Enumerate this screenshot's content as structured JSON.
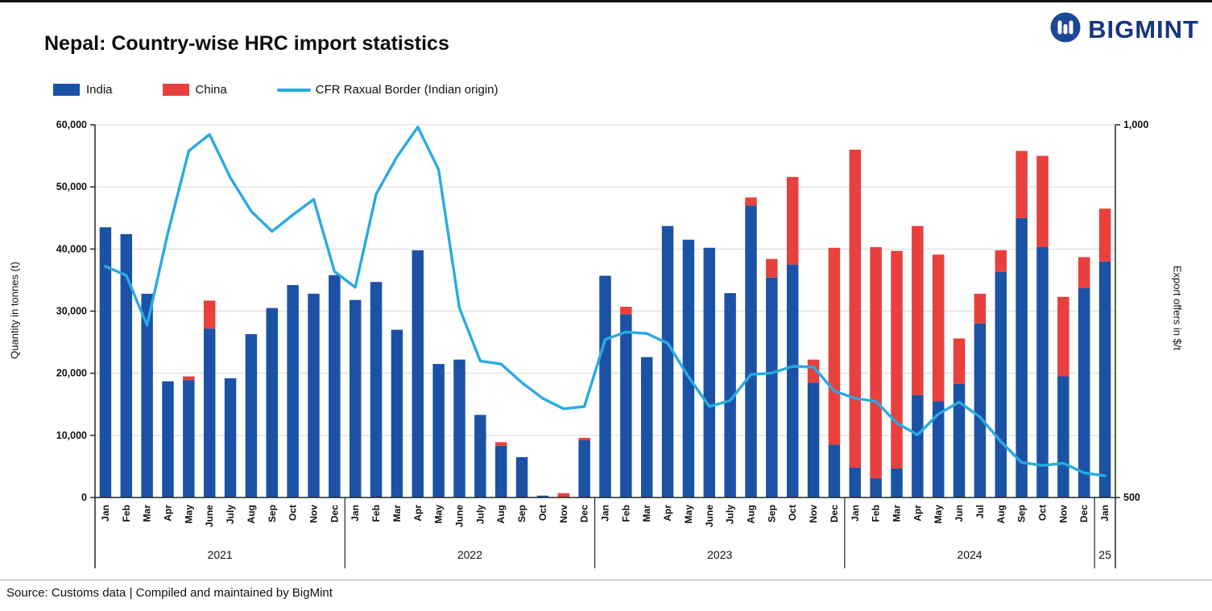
{
  "page": {
    "title": "Nepal: Country-wise HRC import statistics",
    "source": "Source: Customs data | Compiled and maintained by BigMint",
    "logo_text": "BIGMINT"
  },
  "legend": [
    {
      "label": "India",
      "color": "#1B52A5",
      "type": "box"
    },
    {
      "label": "China",
      "color": "#E8403C",
      "type": "box"
    },
    {
      "label": "CFR Raxual Border (Indian origin)",
      "color": "#2AAAE1",
      "type": "line"
    }
  ],
  "chart_data": {
    "type": "bar",
    "title": "Nepal: Country-wise HRC import statistics",
    "ylabel_left": "Quantity in tonnes (t)",
    "ylabel_right": "Export offers in $/t",
    "ylim_left": [
      0,
      60000
    ],
    "ylim_right": [
      500,
      1000
    ],
    "left_ticks": [
      0,
      10000,
      20000,
      30000,
      40000,
      50000,
      60000
    ],
    "right_ticks": [
      500,
      1000
    ],
    "grid": true,
    "legend_position": "top-left",
    "colors": {
      "grid": "#D9D9D9",
      "axis": "#262626"
    },
    "year_groups": [
      {
        "label": "2021",
        "count": 12
      },
      {
        "label": "2022",
        "count": 12
      },
      {
        "label": "2023",
        "count": 12
      },
      {
        "label": "2024",
        "count": 12
      },
      {
        "label": "25",
        "count": 1
      }
    ],
    "months": [
      "Jan",
      "Feb",
      "Mar",
      "Apr",
      "May",
      "June",
      "July",
      "Aug",
      "Sep",
      "Oct",
      "Nov",
      "Dec",
      "Jan",
      "Feb",
      "Mar",
      "Apr",
      "May",
      "June",
      "July",
      "Aug",
      "Sep",
      "Oct",
      "Nov",
      "Dec",
      "Jan",
      "Feb",
      "Mar",
      "Apr",
      "May",
      "June",
      "July",
      "Aug",
      "Sep",
      "Oct",
      "Nov",
      "Dec",
      "Jan",
      "Feb",
      "Mar",
      "Apr",
      "May",
      "Jun",
      "Jul",
      "Aug",
      "Sep",
      "Oct",
      "Nov",
      "Dec",
      "Jan"
    ],
    "series": [
      {
        "name": "India",
        "type": "bar",
        "axis": "left",
        "color": "#1B52A5",
        "values": [
          43500,
          42400,
          32800,
          18700,
          18900,
          27200,
          19200,
          26300,
          30500,
          34200,
          32800,
          35800,
          31800,
          34700,
          27000,
          39800,
          21500,
          22200,
          13300,
          8300,
          6500,
          300,
          0,
          9200,
          35700,
          29500,
          22600,
          43700,
          41500,
          40200,
          32900,
          47000,
          35400,
          37500,
          18500,
          8500,
          4800,
          3100,
          4700,
          16500,
          15500,
          18300,
          28000,
          36300,
          45000,
          40300,
          19500,
          33700,
          38000
        ]
      },
      {
        "name": "China",
        "type": "bar",
        "axis": "left",
        "color": "#E8403C",
        "values": [
          0,
          0,
          0,
          0,
          600,
          4500,
          0,
          0,
          0,
          0,
          0,
          0,
          0,
          0,
          0,
          0,
          0,
          0,
          0,
          600,
          0,
          0,
          700,
          400,
          0,
          1200,
          0,
          0,
          0,
          0,
          0,
          1300,
          3000,
          14100,
          3700,
          31700,
          51200,
          37200,
          35000,
          27200,
          23600,
          7300,
          4800,
          3500,
          10800,
          14700,
          12800,
          5000,
          8500
        ]
      },
      {
        "name": "CFR Raxual Border (Indian origin)",
        "type": "line",
        "axis": "right",
        "color": "#2AAAE1",
        "values": [
          810,
          798,
          731,
          855,
          965,
          987,
          929,
          884,
          857,
          879,
          900,
          803,
          782,
          907,
          957,
          997,
          940,
          754,
          683,
          679,
          654,
          633,
          619,
          622,
          712,
          722,
          720,
          707,
          662,
          622,
          630,
          665,
          667,
          676,
          675,
          643,
          633,
          629,
          600,
          584,
          612,
          628,
          608,
          575,
          547,
          543,
          546,
          533,
          529
        ]
      }
    ]
  }
}
